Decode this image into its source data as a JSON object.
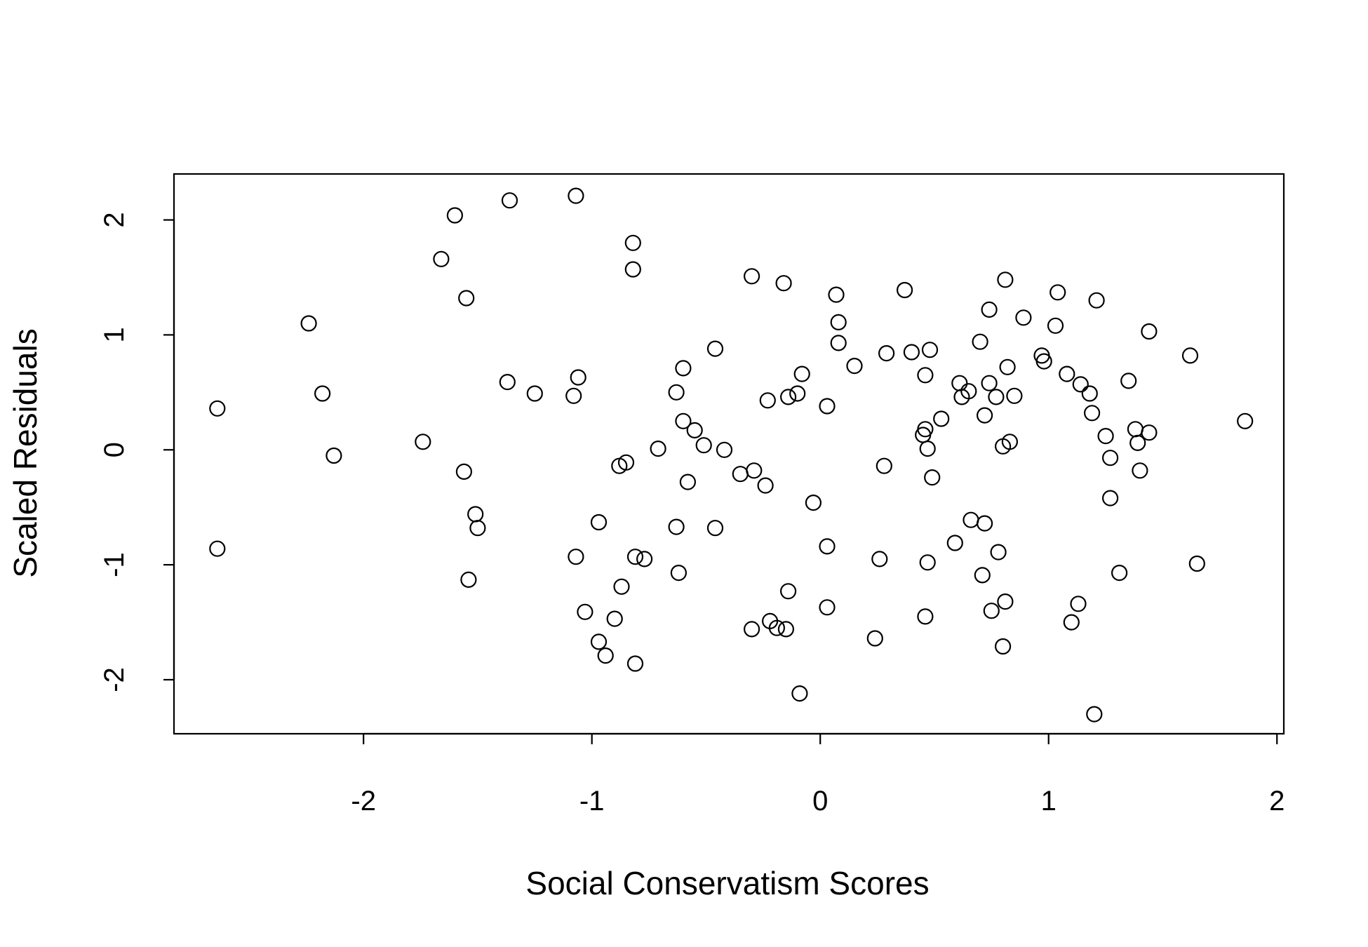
{
  "chart_data": {
    "type": "scatter",
    "title": "",
    "xlabel": "Social Conservatism Scores",
    "ylabel": "Scaled Residuals",
    "xlim": [
      -2.83,
      2.03
    ],
    "ylim": [
      -2.47,
      2.4
    ],
    "x_ticks": [
      -2,
      -1,
      0,
      1,
      2
    ],
    "y_ticks": [
      -2,
      -1,
      0,
      1,
      2
    ],
    "grid": false,
    "marker": "open-circle",
    "points": [
      [
        -2.64,
        0.36
      ],
      [
        -2.64,
        -0.86
      ],
      [
        -2.24,
        1.1
      ],
      [
        -2.18,
        0.49
      ],
      [
        -2.13,
        -0.05
      ],
      [
        -1.74,
        0.07
      ],
      [
        -1.66,
        1.66
      ],
      [
        -1.6,
        2.04
      ],
      [
        -1.56,
        -0.19
      ],
      [
        -1.55,
        1.32
      ],
      [
        -1.54,
        -1.13
      ],
      [
        -1.51,
        -0.56
      ],
      [
        -1.5,
        -0.68
      ],
      [
        -1.37,
        0.59
      ],
      [
        -1.36,
        2.17
      ],
      [
        -1.25,
        0.49
      ],
      [
        -1.08,
        0.47
      ],
      [
        -1.07,
        2.21
      ],
      [
        -1.07,
        -0.93
      ],
      [
        -1.06,
        0.63
      ],
      [
        -1.03,
        -1.41
      ],
      [
        -0.97,
        -0.63
      ],
      [
        -0.97,
        -1.67
      ],
      [
        -0.94,
        -1.79
      ],
      [
        -0.9,
        -1.47
      ],
      [
        -0.88,
        -0.14
      ],
      [
        -0.87,
        -1.19
      ],
      [
        -0.85,
        -0.11
      ],
      [
        -0.82,
        1.8
      ],
      [
        -0.82,
        1.57
      ],
      [
        -0.81,
        -0.93
      ],
      [
        -0.81,
        -1.86
      ],
      [
        -0.77,
        -0.95
      ],
      [
        -0.71,
        0.01
      ],
      [
        -0.63,
        0.5
      ],
      [
        -0.63,
        -0.67
      ],
      [
        -0.62,
        -1.07
      ],
      [
        -0.6,
        0.71
      ],
      [
        -0.6,
        0.25
      ],
      [
        -0.58,
        -0.28
      ],
      [
        -0.55,
        0.17
      ],
      [
        -0.51,
        0.04
      ],
      [
        -0.46,
        0.88
      ],
      [
        -0.46,
        -0.68
      ],
      [
        -0.42,
        0.0
      ],
      [
        -0.35,
        -0.21
      ],
      [
        -0.3,
        1.51
      ],
      [
        -0.3,
        -1.56
      ],
      [
        -0.29,
        -0.18
      ],
      [
        -0.24,
        -0.31
      ],
      [
        -0.23,
        0.43
      ],
      [
        -0.22,
        -1.49
      ],
      [
        -0.19,
        -1.55
      ],
      [
        -0.16,
        1.45
      ],
      [
        -0.15,
        -1.56
      ],
      [
        -0.14,
        -1.23
      ],
      [
        -0.14,
        0.46
      ],
      [
        -0.1,
        0.49
      ],
      [
        -0.09,
        -2.12
      ],
      [
        -0.08,
        0.66
      ],
      [
        -0.03,
        -0.46
      ],
      [
        0.03,
        0.38
      ],
      [
        0.03,
        -0.84
      ],
      [
        0.03,
        -1.37
      ],
      [
        0.07,
        1.35
      ],
      [
        0.08,
        1.11
      ],
      [
        0.08,
        0.93
      ],
      [
        0.15,
        0.73
      ],
      [
        0.24,
        -1.64
      ],
      [
        0.26,
        -0.95
      ],
      [
        0.28,
        -0.14
      ],
      [
        0.29,
        0.84
      ],
      [
        0.37,
        1.39
      ],
      [
        0.4,
        0.85
      ],
      [
        0.45,
        0.13
      ],
      [
        0.46,
        0.18
      ],
      [
        0.46,
        0.65
      ],
      [
        0.46,
        -1.45
      ],
      [
        0.47,
        0.01
      ],
      [
        0.47,
        -0.98
      ],
      [
        0.48,
        0.87
      ],
      [
        0.49,
        -0.24
      ],
      [
        0.53,
        0.27
      ],
      [
        0.59,
        -0.81
      ],
      [
        0.61,
        0.58
      ],
      [
        0.62,
        0.46
      ],
      [
        0.65,
        0.51
      ],
      [
        0.66,
        -0.61
      ],
      [
        0.7,
        0.94
      ],
      [
        0.71,
        -1.09
      ],
      [
        0.72,
        0.3
      ],
      [
        0.72,
        -0.64
      ],
      [
        0.74,
        1.22
      ],
      [
        0.74,
        0.58
      ],
      [
        0.75,
        -1.4
      ],
      [
        0.77,
        0.46
      ],
      [
        0.78,
        -0.89
      ],
      [
        0.8,
        0.03
      ],
      [
        0.8,
        -1.71
      ],
      [
        0.81,
        1.48
      ],
      [
        0.81,
        -1.32
      ],
      [
        0.82,
        0.72
      ],
      [
        0.83,
        0.07
      ],
      [
        0.85,
        0.47
      ],
      [
        0.89,
        1.15
      ],
      [
        0.97,
        0.82
      ],
      [
        0.98,
        0.77
      ],
      [
        1.03,
        1.08
      ],
      [
        1.04,
        1.37
      ],
      [
        1.08,
        0.66
      ],
      [
        1.1,
        -1.5
      ],
      [
        1.13,
        -1.34
      ],
      [
        1.14,
        0.57
      ],
      [
        1.18,
        0.49
      ],
      [
        1.19,
        0.32
      ],
      [
        1.2,
        -2.3
      ],
      [
        1.21,
        1.3
      ],
      [
        1.25,
        0.12
      ],
      [
        1.27,
        -0.07
      ],
      [
        1.27,
        -0.42
      ],
      [
        1.31,
        -1.07
      ],
      [
        1.35,
        0.6
      ],
      [
        1.38,
        0.18
      ],
      [
        1.39,
        0.06
      ],
      [
        1.4,
        -0.18
      ],
      [
        1.44,
        1.03
      ],
      [
        1.44,
        0.15
      ],
      [
        1.62,
        0.82
      ],
      [
        1.65,
        -0.99
      ],
      [
        1.86,
        0.25
      ]
    ]
  }
}
